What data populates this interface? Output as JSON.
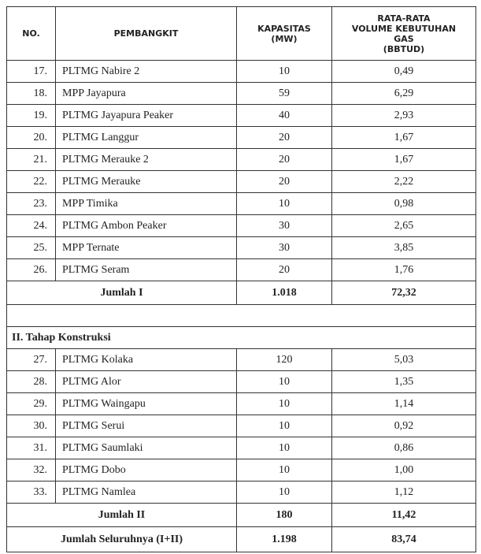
{
  "table": {
    "header": [
      [
        "NO."
      ],
      [
        "PEMBANGKIT"
      ],
      [
        "KAPASITAS",
        "(MW)"
      ],
      [
        "RATA-RATA",
        "VOLUME KEBUTUHAN",
        "GAS",
        "(BBTUD)"
      ]
    ],
    "sections": [
      {
        "rows": [
          [
            "17.",
            "PLTMG Nabire 2",
            "10",
            "0,49"
          ],
          [
            "18.",
            "MPP Jayapura",
            "59",
            "6,29"
          ],
          [
            "19.",
            "PLTMG Jayapura Peaker",
            "40",
            "2,93"
          ],
          [
            "20.",
            "PLTMG Langgur",
            "20",
            "1,67"
          ],
          [
            "21.",
            "PLTMG Merauke 2",
            "20",
            "1,67"
          ],
          [
            "22.",
            "PLTMG Merauke",
            "20",
            "2,22"
          ],
          [
            "23.",
            "MPP Timika",
            "10",
            "0,98"
          ],
          [
            "24.",
            "PLTMG Ambon Peaker",
            "30",
            "2,65"
          ],
          [
            "25.",
            "MPP Ternate",
            "30",
            "3,85"
          ],
          [
            "26.",
            "PLTMG Seram",
            "20",
            "1,76"
          ]
        ],
        "subtotal": [
          "Jumlah I",
          "1.018",
          "72,32"
        ]
      },
      {
        "title": "II. Tahap Konstruksi",
        "rows": [
          [
            "27.",
            "PLTMG Kolaka",
            "120",
            "5,03"
          ],
          [
            "28.",
            "PLTMG Alor",
            "10",
            "1,35"
          ],
          [
            "29.",
            "PLTMG Waingapu",
            "10",
            "1,14"
          ],
          [
            "30.",
            "PLTMG Serui",
            "10",
            "0,92"
          ],
          [
            "31.",
            "PLTMG Saumlaki",
            "10",
            "0,86"
          ],
          [
            "32.",
            "PLTMG Dobo",
            "10",
            "1,00"
          ],
          [
            "33.",
            "PLTMG Namlea",
            "10",
            "1,12"
          ]
        ],
        "subtotal": [
          "Jumlah II",
          "180",
          "11,42"
        ]
      }
    ],
    "total": [
      "Jumlah Seluruhnya (I+II)",
      "1.198",
      "83,74"
    ]
  }
}
